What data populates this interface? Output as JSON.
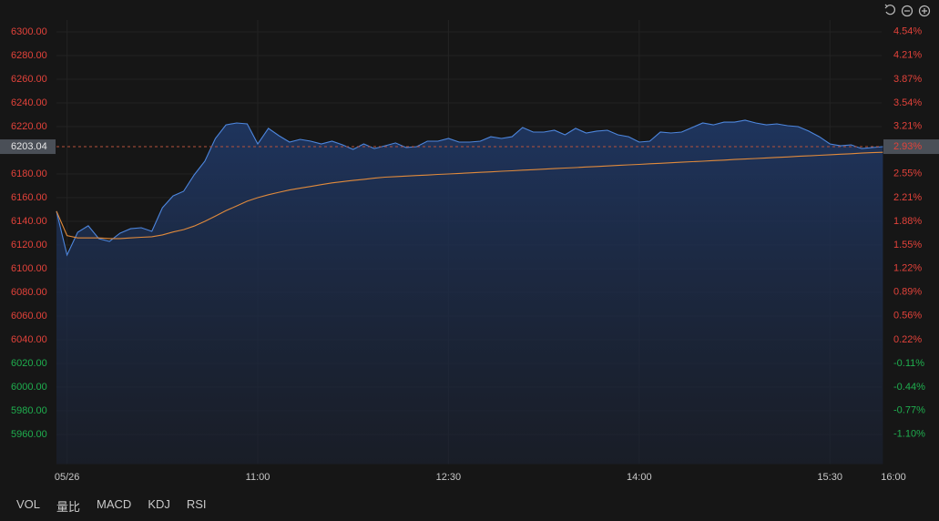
{
  "chart_data": {
    "type": "line",
    "x": [
      565,
      570,
      575,
      580,
      585,
      590,
      595,
      600,
      605,
      610,
      615,
      620,
      625,
      630,
      635,
      640,
      645,
      650,
      655,
      660,
      665,
      670,
      675,
      680,
      685,
      690,
      695,
      700,
      705,
      710,
      715,
      720,
      725,
      730,
      735,
      740,
      745,
      750,
      755,
      760,
      765,
      770,
      775,
      780,
      785,
      790,
      795,
      800,
      805,
      810,
      815,
      820,
      825,
      830,
      835,
      840,
      845,
      850,
      855,
      860,
      865,
      870,
      875,
      880,
      885,
      890,
      895,
      900,
      905,
      910,
      915,
      920,
      925,
      930,
      935,
      940,
      945,
      950,
      955
    ],
    "series": [
      {
        "name": "price",
        "color": "#4d86dd",
        "values": [
          6148.5,
          6111.5,
          6130.8,
          6136.2,
          6125.4,
          6123.1,
          6130.0,
          6133.8,
          6134.6,
          6131.5,
          6151.5,
          6161.5,
          6165.4,
          6179.2,
          6190.8,
          6210.0,
          6221.5,
          6223.1,
          6222.3,
          6205.4,
          6218.5,
          6212.3,
          6206.9,
          6209.2,
          6207.7,
          6205.4,
          6207.7,
          6204.6,
          6200.8,
          6205.4,
          6201.5,
          6203.8,
          6206.2,
          6202.3,
          6203.1,
          6207.7,
          6207.7,
          6210.0,
          6206.9,
          6206.9,
          6207.7,
          6211.5,
          6210.0,
          6211.5,
          6219.2,
          6215.4,
          6215.4,
          6216.9,
          6213.1,
          6218.5,
          6214.6,
          6216.2,
          6216.9,
          6213.1,
          6211.5,
          6206.9,
          6207.7,
          6215.4,
          6214.6,
          6215.4,
          6219.2,
          6223.1,
          6221.5,
          6223.8,
          6223.8,
          6225.4,
          6223.1,
          6221.5,
          6222.3,
          6220.8,
          6220.0,
          6216.2,
          6211.5,
          6205.4,
          6203.8,
          6204.6,
          6201.5,
          6202.3,
          6203.04
        ]
      },
      {
        "name": "average",
        "color": "#e08a3c",
        "values": [
          6148.5,
          6128,
          6126,
          6126,
          6126,
          6125.5,
          6125.5,
          6126,
          6126.5,
          6127,
          6128.5,
          6131,
          6133,
          6136,
          6140,
          6144.5,
          6149,
          6153,
          6157,
          6160,
          6162.5,
          6164.5,
          6166.5,
          6168,
          6169.5,
          6171,
          6172.5,
          6173.5,
          6174.5,
          6175.5,
          6176.5,
          6177.3,
          6177.8,
          6178.2,
          6178.7,
          6179.1,
          6179.6,
          6180.0,
          6180.5,
          6180.9,
          6181.4,
          6181.8,
          6182.3,
          6182.7,
          6183.2,
          6183.6,
          6184.1,
          6184.5,
          6185.0,
          6185.4,
          6185.9,
          6186.3,
          6186.8,
          6187.2,
          6187.7,
          6188.1,
          6188.6,
          6189.0,
          6189.5,
          6189.9,
          6190.4,
          6190.8,
          6191.3,
          6191.7,
          6192.2,
          6192.6,
          6193.1,
          6193.5,
          6194.0,
          6194.4,
          6194.9,
          6195.3,
          6195.8,
          6196.2,
          6196.7,
          6197.1,
          6197.6,
          6198.0,
          6198.3
        ]
      }
    ],
    "xlim": [
      565,
      960
    ],
    "xticks": [
      {
        "value": 570,
        "label": "05/26"
      },
      {
        "value": 660,
        "label": "11:00"
      },
      {
        "value": 750,
        "label": "12:30"
      },
      {
        "value": 840,
        "label": "14:00"
      },
      {
        "value": 930,
        "label": "15:30"
      },
      {
        "value": 960,
        "label": "16:00"
      }
    ],
    "ylim": [
      5935,
      6310
    ],
    "yticks": [
      {
        "value": 6300,
        "label": "6300.00"
      },
      {
        "value": 6280,
        "label": "6280.00"
      },
      {
        "value": 6260,
        "label": "6260.00"
      },
      {
        "value": 6240,
        "label": "6240.00"
      },
      {
        "value": 6220,
        "label": "6220.00"
      },
      {
        "value": 6180,
        "label": "6180.00"
      },
      {
        "value": 6160,
        "label": "6160.00"
      },
      {
        "value": 6140,
        "label": "6140.00"
      },
      {
        "value": 6120,
        "label": "6120.00"
      },
      {
        "value": 6100,
        "label": "6100.00"
      },
      {
        "value": 6080,
        "label": "6080.00"
      },
      {
        "value": 6060,
        "label": "6060.00"
      },
      {
        "value": 6040,
        "label": "6040.00"
      },
      {
        "value": 6020,
        "label": "6020.00"
      },
      {
        "value": 6000,
        "label": "6000.00"
      },
      {
        "value": 5980,
        "label": "5980.00"
      },
      {
        "value": 5960,
        "label": "5960.00"
      }
    ],
    "y2lim": [
      -1.52,
      4.7
    ],
    "y2ticks": [
      {
        "value": 4.54,
        "label": "4.54%"
      },
      {
        "value": 4.21,
        "label": "4.21%"
      },
      {
        "value": 3.87,
        "label": "3.87%"
      },
      {
        "value": 3.54,
        "label": "3.54%"
      },
      {
        "value": 3.21,
        "label": "3.21%"
      },
      {
        "value": 2.55,
        "label": "2.55%"
      },
      {
        "value": 2.21,
        "label": "2.21%"
      },
      {
        "value": 1.88,
        "label": "1.88%"
      },
      {
        "value": 1.55,
        "label": "1.55%"
      },
      {
        "value": 1.22,
        "label": "1.22%"
      },
      {
        "value": 0.89,
        "label": "0.89%"
      },
      {
        "value": 0.56,
        "label": "0.56%"
      },
      {
        "value": 0.22,
        "label": "0.22%"
      },
      {
        "value": -0.11,
        "label": "-0.11%"
      },
      {
        "value": -0.44,
        "label": "-0.44%"
      },
      {
        "value": -0.77,
        "label": "-0.77%"
      },
      {
        "value": -1.1,
        "label": "-1.10%"
      }
    ],
    "last_price": 6203.04,
    "last_change": {
      "value": 2.93,
      "label": "2.93%"
    },
    "up_color": "#e2423a",
    "down_color": "#1fae4e",
    "grid": true
  },
  "tabs": [
    "VOL",
    "量比",
    "MACD",
    "KDJ",
    "RSI"
  ]
}
